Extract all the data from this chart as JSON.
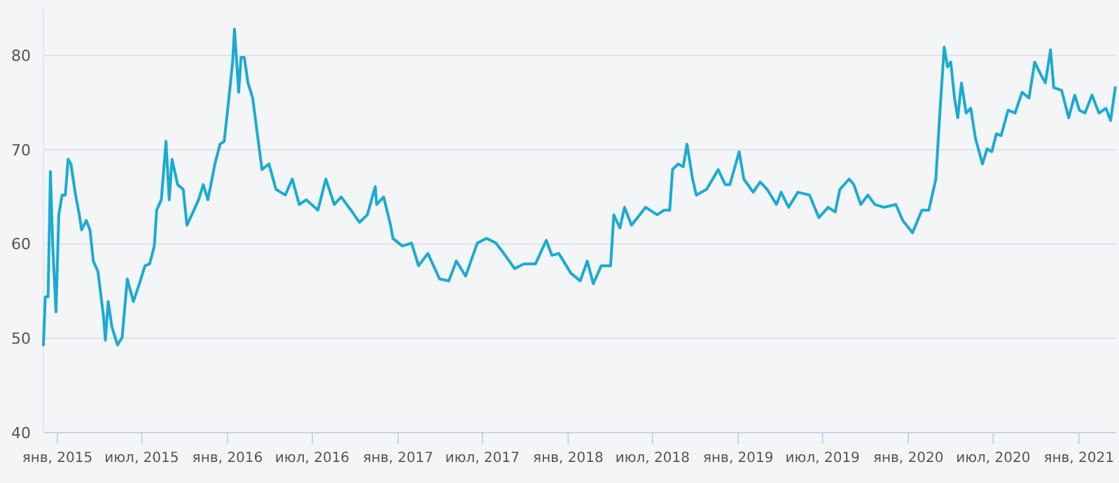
{
  "chart_data": {
    "type": "line",
    "x": [
      "2014-12-02",
      "2014-12-06",
      "2014-12-12",
      "2014-12-17",
      "2014-12-22",
      "2014-12-29",
      "2015-01-04",
      "2015-01-11",
      "2015-01-18",
      "2015-01-24",
      "2015-01-30",
      "2015-02-09",
      "2015-02-17",
      "2015-02-22",
      "2015-03-04",
      "2015-03-12",
      "2015-03-19",
      "2015-03-29",
      "2015-04-10",
      "2015-04-14",
      "2015-04-20",
      "2015-04-28",
      "2015-05-10",
      "2015-05-20",
      "2015-05-31",
      "2015-06-13",
      "2015-06-28",
      "2015-07-08",
      "2015-07-18",
      "2015-07-28",
      "2015-08-02",
      "2015-08-12",
      "2015-08-19",
      "2015-08-22",
      "2015-08-29",
      "2015-09-04",
      "2015-09-16",
      "2015-09-28",
      "2015-10-06",
      "2015-10-21",
      "2015-10-31",
      "2015-11-10",
      "2015-11-20",
      "2015-12-05",
      "2015-12-16",
      "2015-12-25",
      "2016-01-04",
      "2016-01-12",
      "2016-01-16",
      "2016-01-25",
      "2016-01-30",
      "2016-02-06",
      "2016-02-14",
      "2016-02-24",
      "2016-03-05",
      "2016-03-15",
      "2016-03-30",
      "2016-04-14",
      "2016-05-04",
      "2016-05-19",
      "2016-06-03",
      "2016-06-18",
      "2016-07-13",
      "2016-07-30",
      "2016-08-17",
      "2016-09-01",
      "2016-09-22",
      "2016-10-10",
      "2016-10-27",
      "2016-11-13",
      "2016-11-16",
      "2016-12-01",
      "2016-12-16",
      "2016-12-21",
      "2017-01-10",
      "2017-01-30",
      "2017-02-14",
      "2017-03-06",
      "2017-03-31",
      "2017-04-20",
      "2017-05-06",
      "2017-05-26",
      "2017-06-20",
      "2017-07-10",
      "2017-07-30",
      "2017-08-19",
      "2017-09-08",
      "2017-09-28",
      "2017-10-23",
      "2017-11-15",
      "2017-11-27",
      "2017-12-12",
      "2018-01-07",
      "2018-01-27",
      "2018-02-11",
      "2018-02-24",
      "2018-03-13",
      "2018-04-02",
      "2018-04-09",
      "2018-04-22",
      "2018-05-02",
      "2018-05-17",
      "2018-06-16",
      "2018-07-11",
      "2018-07-26",
      "2018-08-07",
      "2018-08-13",
      "2018-08-25",
      "2018-09-05",
      "2018-09-13",
      "2018-09-25",
      "2018-10-03",
      "2018-10-25",
      "2018-11-19",
      "2018-12-04",
      "2018-12-14",
      "2019-01-03",
      "2019-01-13",
      "2019-02-02",
      "2019-02-17",
      "2019-03-04",
      "2019-03-24",
      "2019-04-03",
      "2019-04-19",
      "2019-05-09",
      "2019-06-03",
      "2019-06-23",
      "2019-07-13",
      "2019-07-28",
      "2019-08-07",
      "2019-08-27",
      "2019-09-06",
      "2019-09-21",
      "2019-10-06",
      "2019-10-21",
      "2019-11-10",
      "2019-12-05",
      "2019-12-20",
      "2020-01-10",
      "2020-01-30",
      "2020-02-14",
      "2020-02-29",
      "2020-03-10",
      "2020-03-18",
      "2020-03-25",
      "2020-04-01",
      "2020-04-09",
      "2020-04-16",
      "2020-04-24",
      "2020-05-04",
      "2020-05-14",
      "2020-05-24",
      "2020-06-08",
      "2020-06-18",
      "2020-06-28",
      "2020-07-08",
      "2020-07-18",
      "2020-08-02",
      "2020-08-17",
      "2020-09-01",
      "2020-09-16",
      "2020-09-28",
      "2020-10-12",
      "2020-10-21",
      "2020-11-01",
      "2020-11-08",
      "2020-11-25",
      "2020-12-10",
      "2020-12-23",
      "2021-01-02",
      "2021-01-14",
      "2021-01-29",
      "2021-02-13",
      "2021-02-28",
      "2021-03-10",
      "2021-03-20"
    ],
    "series": [
      {
        "color": "#1aabd2",
        "values": [
          49.3,
          54.4,
          54.4,
          67.7,
          59.8,
          52.8,
          63.1,
          65.2,
          65.2,
          69,
          68.5,
          65.2,
          63.1,
          61.5,
          62.5,
          61.5,
          58.2,
          57.1,
          52.3,
          49.8,
          53.9,
          51.2,
          49.3,
          50.1,
          56.3,
          53.9,
          56.1,
          57.7,
          57.9,
          59.8,
          63.6,
          64.7,
          69,
          70.9,
          64.7,
          69,
          66.3,
          65.8,
          62,
          63.6,
          64.7,
          66.3,
          64.7,
          68.5,
          70.6,
          70.9,
          75.5,
          79.3,
          82.8,
          76.1,
          79.8,
          79.8,
          77.1,
          75.5,
          71.7,
          67.9,
          68.5,
          65.8,
          65.2,
          66.9,
          64.2,
          64.7,
          63.6,
          66.9,
          64.2,
          65,
          63.6,
          62.3,
          63.1,
          66.1,
          64.2,
          65,
          62,
          60.6,
          59.8,
          60.1,
          57.7,
          59,
          56.3,
          56.1,
          58.2,
          56.6,
          60.1,
          60.6,
          60.1,
          58.8,
          57.4,
          57.9,
          57.9,
          60.4,
          58.8,
          59,
          56.9,
          56.1,
          58.2,
          55.8,
          57.7,
          57.7,
          63.1,
          61.7,
          63.9,
          62,
          63.9,
          63.1,
          63.6,
          63.6,
          67.9,
          68.5,
          68.2,
          70.6,
          66.9,
          65.2,
          65.8,
          67.9,
          66.3,
          66.3,
          69.8,
          66.9,
          65.5,
          66.6,
          65.8,
          64.2,
          65.5,
          63.9,
          65.5,
          65.2,
          62.8,
          63.9,
          63.4,
          65.8,
          66.9,
          66.3,
          64.2,
          65.2,
          64.2,
          63.9,
          64.2,
          62.5,
          61.2,
          63.6,
          63.6,
          66.9,
          75,
          80.9,
          78.8,
          79.3,
          75.5,
          73.4,
          77.1,
          73.9,
          74.4,
          71.2,
          68.5,
          70.1,
          69.8,
          71.7,
          71.5,
          74.2,
          73.9,
          76.1,
          75.5,
          79.3,
          77.9,
          77.1,
          80.6,
          76.6,
          76.3,
          73.4,
          75.8,
          74.2,
          73.9,
          75.8,
          73.9,
          74.4,
          73.1,
          76.6
        ]
      }
    ],
    "xlim": [
      "2014-12-02",
      "2021-03-22"
    ],
    "xticks": [
      {
        "value": "2015-01-01",
        "label": "янв, 2015"
      },
      {
        "value": "2015-07-01",
        "label": "июл, 2015"
      },
      {
        "value": "2016-01-01",
        "label": "янв, 2016"
      },
      {
        "value": "2016-07-01",
        "label": "июл, 2016"
      },
      {
        "value": "2017-01-01",
        "label": "янв, 2017"
      },
      {
        "value": "2017-07-01",
        "label": "июл, 2017"
      },
      {
        "value": "2018-01-01",
        "label": "янв, 2018"
      },
      {
        "value": "2018-07-01",
        "label": "июл, 2018"
      },
      {
        "value": "2019-01-01",
        "label": "янв, 2019"
      },
      {
        "value": "2019-07-01",
        "label": "июл, 2019"
      },
      {
        "value": "2020-01-01",
        "label": "янв, 2020"
      },
      {
        "value": "2020-07-01",
        "label": "июл, 2020"
      },
      {
        "value": "2021-01-01",
        "label": "янв, 2021"
      }
    ],
    "ylim": [
      40,
      85
    ],
    "yticks": [
      40,
      50,
      60,
      70,
      80
    ],
    "grid": "y",
    "marker": "none",
    "line_style": "solid"
  }
}
